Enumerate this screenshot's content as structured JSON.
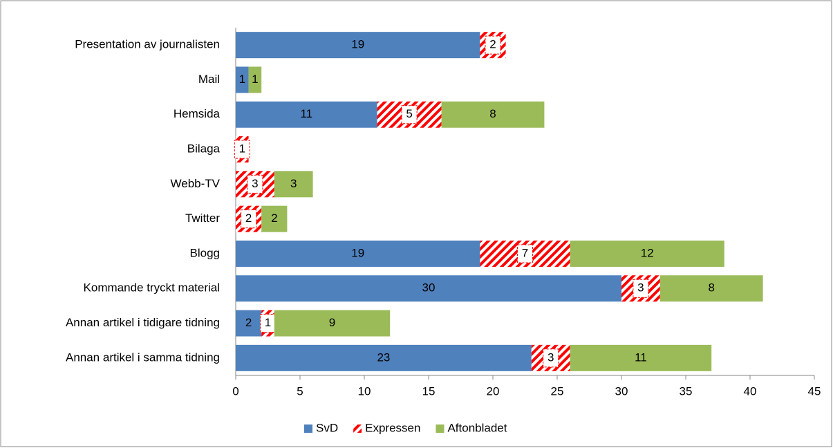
{
  "chart_data": {
    "type": "stacked-bar-horizontal",
    "categories": [
      "Presentation av journalisten",
      "Mail",
      "Hemsida",
      "Bilaga",
      "Webb-TV",
      "Twitter",
      "Blogg",
      "Kommande tryckt material",
      "Annan artikel i tidigare tidning",
      "Annan artikel i samma tidning"
    ],
    "series": [
      {
        "name": "SvD",
        "color": "#4f81bd",
        "values": [
          19,
          1,
          11,
          null,
          null,
          null,
          19,
          30,
          2,
          23
        ]
      },
      {
        "name": "Expressen",
        "color": "#ff0000",
        "pattern": "hatched",
        "values": [
          2,
          null,
          5,
          1,
          3,
          2,
          7,
          3,
          1,
          3
        ]
      },
      {
        "name": "Aftonbladet",
        "color": "#9bbb59",
        "values": [
          null,
          1,
          8,
          null,
          3,
          2,
          12,
          8,
          9,
          11
        ]
      }
    ],
    "xlim": [
      0,
      45
    ],
    "xticks": [
      0,
      5,
      10,
      15,
      20,
      25,
      30,
      35,
      40,
      45
    ],
    "legend": "bottom"
  }
}
